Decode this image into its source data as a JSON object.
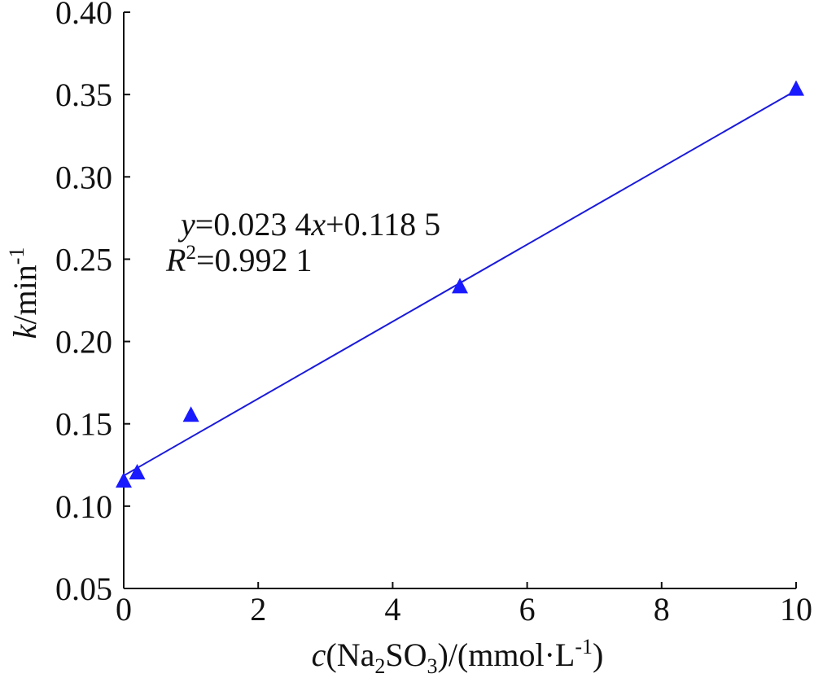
{
  "chart_data": {
    "type": "scatter",
    "x_ticks": [
      "0",
      "2",
      "4",
      "6",
      "8",
      "10"
    ],
    "y_ticks": [
      "0.05",
      "0.10",
      "0.15",
      "0.20",
      "0.25",
      "0.30",
      "0.35",
      "0.40"
    ],
    "xlim": [
      0,
      10
    ],
    "ylim": [
      0.05,
      0.4
    ],
    "grid": false,
    "xlabel": {
      "var": "c",
      "pre": "(Na",
      "sub1": "2",
      "mid": "SO",
      "sub2": "3",
      "post": ")/(mmol·L",
      "sup": "-1",
      "end": ")"
    },
    "ylabel": {
      "var": "k",
      "text": "/min",
      "sup": "-1"
    },
    "series": [
      {
        "marker": "triangle",
        "color": "#1a1aff",
        "points": [
          {
            "x": 0,
            "y": 0.115
          },
          {
            "x": 0.2,
            "y": 0.12
          },
          {
            "x": 1,
            "y": 0.155
          },
          {
            "x": 5,
            "y": 0.233
          },
          {
            "x": 10,
            "y": 0.353
          }
        ]
      }
    ],
    "fit_line": {
      "slope": 0.0234,
      "intercept": 0.1185,
      "color": "#1a1adb"
    },
    "annotations": {
      "equation": {
        "y": "y",
        "eq": "=0.023 4",
        "x": "x",
        "rest": "+0.118 5"
      },
      "r2": {
        "r": "R",
        "sup": "2",
        "rest": "=0.992 1"
      }
    }
  }
}
